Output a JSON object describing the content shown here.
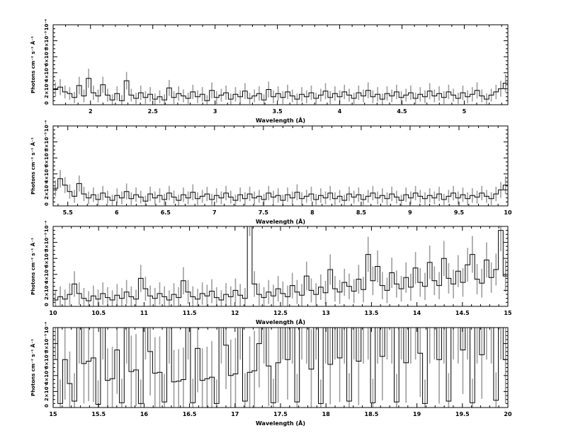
{
  "figure": {
    "background": "#ffffff",
    "axis_color": "#000000",
    "step_color": "#000000",
    "error_color": "#9e9e9e",
    "xlabel": "Wavelength (Å)",
    "ylabel": "Photons cm⁻² s⁻¹ Å⁻¹"
  },
  "chart_data": [
    {
      "type": "line",
      "title": "",
      "style": "step-histogram with vertical error bars",
      "xlabel": "Wavelength (Å)",
      "ylabel": "Photons cm⁻² s⁻¹ Å⁻¹",
      "xlim": [
        1.7,
        5.35
      ],
      "ylim": [
        0,
        0.0001
      ],
      "y_unit_scale": 1e-05,
      "x_ticks": {
        "values": [
          2,
          2.5,
          3,
          3.5,
          4,
          4.5,
          5
        ],
        "labels": [
          "2",
          "2.5",
          "3",
          "3.5",
          "4",
          "4.5",
          "5"
        ],
        "minor_step": 0.1
      },
      "y_ticks": {
        "values": [
          0,
          2,
          4,
          6,
          8,
          10
        ],
        "labels": [
          "0",
          "2×10⁻⁵",
          "4×10⁻⁵",
          "6×10⁻⁵",
          "8×10⁻⁵",
          "10⁻⁴"
        ],
        "minor_step": 0.5,
        "max": 10
      },
      "series": [
        {
          "name": "spectrum",
          "color": "#000000"
        },
        {
          "name": "error bars",
          "color": "#9e9e9e"
        }
      ],
      "bins": {
        "x0": 1.7,
        "dx": 0.0380208,
        "flux": [
          1.9,
          2.2,
          1.6,
          1.4,
          0.9,
          2.4,
          1.1,
          3.3,
          1.5,
          1.1,
          2.5,
          1.2,
          0.6,
          1.4,
          0.5,
          3.0,
          1.2,
          0.8,
          1.5,
          0.9,
          1.3,
          0.7,
          1.0,
          0.6,
          2.1,
          0.9,
          1.4,
          1.1,
          0.8,
          1.6,
          1.0,
          1.3,
          0.5,
          1.8,
          0.9,
          1.2,
          1.5,
          0.7,
          1.3,
          1.0,
          1.7,
          0.8,
          1.1,
          1.4,
          0.6,
          1.9,
          1.0,
          1.4,
          0.9,
          1.6,
          1.1,
          0.7,
          1.3,
          1.0,
          1.5,
          0.8,
          1.2,
          1.7,
          0.9,
          1.4,
          1.0,
          1.6,
          1.2,
          0.8,
          1.5,
          1.1,
          1.8,
          1.0,
          1.3,
          0.7,
          1.4,
          1.1,
          1.6,
          0.9,
          1.2,
          1.5,
          0.8,
          1.3,
          1.0,
          1.7,
          1.1,
          1.4,
          0.9,
          1.6,
          1.2,
          0.8,
          1.5,
          1.0,
          1.3,
          1.8,
          1.1,
          0.7,
          1.2,
          1.6,
          2.0,
          2.7
        ],
        "err": [
          0.9,
          1.0,
          0.8,
          0.8,
          0.7,
          1.1,
          0.8,
          1.2,
          0.9,
          0.8,
          1.0,
          0.8,
          0.7,
          0.9,
          0.7,
          1.1,
          0.8,
          0.7,
          0.9,
          0.8,
          0.9,
          0.7,
          0.8,
          0.7,
          1.0,
          0.8,
          0.9,
          0.8,
          0.7,
          0.9,
          0.8,
          0.9,
          0.7,
          1.0,
          0.8,
          0.8,
          0.9,
          0.7,
          0.9,
          0.8,
          1.0,
          0.7,
          0.8,
          0.9,
          0.7,
          1.0,
          0.8,
          0.9,
          0.8,
          0.9,
          0.8,
          0.7,
          0.9,
          0.8,
          0.9,
          0.7,
          0.8,
          1.0,
          0.8,
          0.9,
          0.8,
          0.9,
          0.8,
          0.7,
          0.9,
          0.8,
          1.0,
          0.8,
          0.9,
          0.7,
          0.9,
          0.8,
          0.9,
          0.8,
          0.8,
          0.9,
          0.7,
          0.9,
          0.8,
          1.0,
          0.8,
          0.9,
          0.8,
          0.9,
          0.8,
          0.7,
          0.9,
          0.8,
          0.9,
          1.0,
          0.8,
          0.7,
          0.8,
          0.9,
          1.0,
          1.1
        ]
      }
    },
    {
      "type": "line",
      "title": "",
      "style": "step-histogram with vertical error bars",
      "xlabel": "Wavelength (Å)",
      "ylabel": "Photons cm⁻² s⁻¹ Å⁻¹",
      "xlim": [
        5.35,
        10.0
      ],
      "ylim": [
        0,
        0.0001
      ],
      "y_unit_scale": 1e-05,
      "x_ticks": {
        "values": [
          5.5,
          6,
          6.5,
          7,
          7.5,
          8,
          8.5,
          9,
          9.5,
          10
        ],
        "labels": [
          "5.5",
          "6",
          "6.5",
          "7",
          "7.5",
          "8",
          "8.5",
          "9",
          "9.5",
          "10"
        ],
        "minor_step": 0.1
      },
      "y_ticks": {
        "values": [
          0,
          2,
          4,
          6,
          8,
          10
        ],
        "labels": [
          "0",
          "2×10⁻⁵",
          "4×10⁻⁵",
          "6×10⁻⁵",
          "8×10⁻⁵",
          "10⁻⁴"
        ],
        "minor_step": 0.5,
        "max": 10
      },
      "series": [
        {
          "name": "spectrum",
          "color": "#000000"
        },
        {
          "name": "error bars",
          "color": "#9e9e9e"
        }
      ],
      "bins": {
        "x0": 5.35,
        "dx": 0.0484375,
        "flux": [
          2.2,
          3.4,
          2.6,
          1.8,
          1.2,
          2.8,
          1.5,
          1.0,
          1.4,
          0.8,
          1.6,
          1.1,
          0.7,
          1.3,
          1.0,
          1.8,
          0.9,
          1.4,
          1.1,
          0.6,
          1.5,
          1.0,
          1.3,
          0.8,
          1.6,
          1.1,
          0.7,
          1.4,
          1.0,
          1.7,
          0.9,
          1.2,
          1.5,
          0.8,
          1.3,
          1.0,
          1.6,
          1.1,
          0.7,
          1.4,
          0.9,
          1.5,
          1.0,
          1.2,
          0.8,
          1.6,
          1.1,
          1.3,
          0.7,
          1.4,
          1.0,
          1.7,
          0.9,
          1.2,
          1.5,
          0.8,
          1.3,
          1.0,
          1.6,
          0.9,
          1.2,
          0.7,
          1.5,
          1.1,
          1.4,
          0.8,
          1.2,
          1.6,
          1.0,
          1.3,
          0.9,
          1.5,
          1.1,
          0.7,
          1.4,
          1.0,
          1.6,
          1.2,
          0.9,
          1.3,
          1.0,
          1.5,
          0.8,
          1.2,
          1.6,
          1.0,
          1.4,
          0.9,
          1.3,
          1.1,
          1.6,
          1.2,
          0.9,
          1.5,
          2.0,
          2.6
        ],
        "err": [
          1.0,
          1.1,
          1.0,
          0.9,
          0.8,
          1.0,
          0.9,
          0.8,
          0.9,
          0.7,
          0.9,
          0.8,
          0.7,
          0.9,
          0.8,
          1.0,
          0.8,
          0.9,
          0.8,
          0.7,
          0.9,
          0.8,
          0.9,
          0.7,
          0.9,
          0.8,
          0.7,
          0.9,
          0.8,
          1.0,
          0.8,
          0.8,
          0.9,
          0.7,
          0.9,
          0.8,
          0.9,
          0.8,
          0.7,
          0.9,
          0.8,
          0.9,
          0.8,
          0.8,
          0.7,
          0.9,
          0.8,
          0.9,
          0.7,
          0.9,
          0.8,
          1.0,
          0.8,
          0.8,
          0.9,
          0.7,
          0.9,
          0.8,
          0.9,
          0.8,
          0.8,
          0.7,
          0.9,
          0.8,
          0.9,
          0.7,
          0.8,
          0.9,
          0.8,
          0.9,
          0.8,
          0.9,
          0.8,
          0.7,
          0.9,
          0.8,
          0.9,
          0.8,
          0.8,
          0.9,
          0.8,
          0.9,
          0.7,
          0.8,
          0.9,
          0.8,
          0.9,
          0.8,
          0.9,
          0.8,
          0.9,
          0.8,
          0.8,
          0.9,
          1.0,
          1.1
        ]
      }
    },
    {
      "type": "line",
      "title": "",
      "style": "step-histogram with vertical error bars",
      "xlabel": "Wavelength (Å)",
      "ylabel": "Photons cm⁻² s⁻¹ Å⁻¹",
      "xlim": [
        10.0,
        15.0
      ],
      "ylim": [
        0,
        0.0001
      ],
      "y_unit_scale": 1e-05,
      "x_ticks": {
        "values": [
          10,
          10.5,
          11,
          11.5,
          12,
          12.5,
          13,
          13.5,
          14,
          14.5,
          15
        ],
        "labels": [
          "10",
          "10.5",
          "11",
          "11.5",
          "12",
          "12.5",
          "13",
          "13.5",
          "14",
          "14.5",
          "15"
        ],
        "minor_step": 0.1
      },
      "y_ticks": {
        "values": [
          0,
          2,
          4,
          6,
          8,
          10
        ],
        "labels": [
          "0",
          "2×10⁻⁵",
          "4×10⁻⁵",
          "6×10⁻⁵",
          "8×10⁻⁵",
          "10⁻⁴"
        ],
        "minor_step": 0.5,
        "max": 10
      },
      "series": [
        {
          "name": "spectrum",
          "color": "#000000"
        },
        {
          "name": "error bars",
          "color": "#9e9e9e"
        }
      ],
      "bins": {
        "x0": 10.0,
        "dx": 0.0520833,
        "flux": [
          0.8,
          1.2,
          0.9,
          1.5,
          2.8,
          1.6,
          1.0,
          0.7,
          1.3,
          0.9,
          1.6,
          1.1,
          0.8,
          1.4,
          1.0,
          1.8,
          1.2,
          0.9,
          3.5,
          2.2,
          1.3,
          1.0,
          1.6,
          1.2,
          0.8,
          1.5,
          1.1,
          3.2,
          1.8,
          1.2,
          0.9,
          1.6,
          1.3,
          1.9,
          1.1,
          0.8,
          1.5,
          1.2,
          2.0,
          1.4,
          1.0,
          11.0,
          2.8,
          1.5,
          1.1,
          1.8,
          1.3,
          2.2,
          1.6,
          1.2,
          2.6,
          1.8,
          1.4,
          3.8,
          2.0,
          1.5,
          2.4,
          1.7,
          4.6,
          2.2,
          1.8,
          3.0,
          2.5,
          1.9,
          3.4,
          2.1,
          6.5,
          3.2,
          5.0,
          2.6,
          2.0,
          4.2,
          2.8,
          2.2,
          3.6,
          2.4,
          4.8,
          3.0,
          2.5,
          5.5,
          3.2,
          2.6,
          6.0,
          3.5,
          2.8,
          4.4,
          3.0,
          5.2,
          6.5,
          3.4,
          2.9,
          5.8,
          3.6,
          4.6,
          9.5,
          3.8
        ],
        "err": [
          1.2,
          1.3,
          1.2,
          1.4,
          1.6,
          1.4,
          1.3,
          1.2,
          1.3,
          1.2,
          1.4,
          1.3,
          1.2,
          1.4,
          1.3,
          1.5,
          1.3,
          1.2,
          1.7,
          1.5,
          1.3,
          1.3,
          1.4,
          1.3,
          1.2,
          1.4,
          1.3,
          1.7,
          1.5,
          1.3,
          1.3,
          1.4,
          1.4,
          1.5,
          1.3,
          1.2,
          1.4,
          1.3,
          1.5,
          1.4,
          1.3,
          2.2,
          1.6,
          1.4,
          1.3,
          1.5,
          1.4,
          1.6,
          1.5,
          1.4,
          1.6,
          1.5,
          1.4,
          1.8,
          1.5,
          1.4,
          1.6,
          1.5,
          1.9,
          1.6,
          1.5,
          1.7,
          1.6,
          1.5,
          1.8,
          1.6,
          2.2,
          1.8,
          2.0,
          1.7,
          1.6,
          1.9,
          1.7,
          1.6,
          1.9,
          1.7,
          2.0,
          1.8,
          1.7,
          2.1,
          1.8,
          1.7,
          2.2,
          1.9,
          1.8,
          2.0,
          1.8,
          2.1,
          2.3,
          1.9,
          1.8,
          2.2,
          1.9,
          2.0,
          2.6,
          2.0
        ]
      }
    },
    {
      "type": "line",
      "title": "",
      "style": "step-histogram with vertical error bars",
      "xlabel": "Wavelength (Å)",
      "ylabel": "Photons cm⁻² s⁻¹ Å⁻¹",
      "xlim": [
        15.0,
        20.0
      ],
      "ylim": [
        0,
        0.0001
      ],
      "y_unit_scale": 1e-05,
      "x_ticks": {
        "values": [
          15,
          15.5,
          16,
          16.5,
          17,
          17.5,
          18,
          18.5,
          19,
          19.5,
          20
        ],
        "labels": [
          "15",
          "15.5",
          "16",
          "16.5",
          "17",
          "17.5",
          "18",
          "18.5",
          "19",
          "19.5",
          "20"
        ],
        "minor_step": 0.1
      },
      "y_ticks": {
        "values": [
          0,
          2,
          4,
          6,
          8,
          10
        ],
        "labels": [
          "0",
          "2×10⁻⁵",
          "4×10⁻⁵",
          "6×10⁻⁵",
          "8×10⁻⁵",
          "10⁻⁴"
        ],
        "minor_step": 0.5,
        "max": 10
      },
      "series": [
        {
          "name": "spectrum",
          "color": "#000000"
        },
        {
          "name": "error bars",
          "color": "#9e9e9e"
        }
      ],
      "bins": {
        "x0": 15.0,
        "dx": 0.0520833,
        "flux": [
          12.0,
          0.5,
          6.0,
          3.0,
          0.8,
          12.0,
          5.5,
          5.8,
          6.2,
          0.4,
          12.0,
          3.4,
          3.6,
          7.2,
          0.6,
          12.0,
          4.5,
          4.7,
          0.5,
          12.0,
          7.0,
          4.3,
          4.4,
          0.7,
          12.0,
          3.2,
          3.3,
          3.5,
          12.0,
          0.6,
          7.4,
          3.4,
          3.6,
          3.8,
          0.5,
          12.0,
          7.8,
          4.0,
          4.2,
          12.0,
          0.8,
          4.4,
          4.6,
          8.0,
          12.0,
          5.2,
          0.6,
          5.6,
          12.0,
          6.0,
          12.0,
          0.7,
          12.0,
          12.0,
          4.8,
          12.0,
          0.5,
          12.0,
          5.4,
          12.0,
          6.2,
          12.0,
          0.8,
          12.0,
          5.8,
          12.0,
          12.0,
          0.6,
          12.0,
          6.4,
          12.0,
          12.0,
          0.7,
          12.0,
          5.6,
          12.0,
          12.0,
          6.8,
          0.5,
          12.0,
          12.0,
          6.0,
          12.0,
          0.8,
          12.0,
          12.0,
          7.2,
          12.0,
          0.6,
          12.0,
          6.6,
          12.0,
          12.0,
          0.9,
          12.0,
          6.0
        ],
        "err": [
          6.0,
          3.0,
          5.0,
          4.0,
          3.5,
          6.5,
          5.0,
          5.0,
          5.5,
          3.0,
          6.0,
          4.0,
          4.0,
          5.5,
          3.0,
          6.5,
          4.5,
          4.5,
          3.0,
          6.0,
          5.5,
          4.5,
          4.5,
          3.5,
          6.5,
          4.0,
          4.0,
          4.0,
          6.0,
          3.0,
          5.5,
          4.0,
          4.0,
          4.5,
          3.0,
          6.5,
          5.5,
          4.5,
          4.5,
          6.0,
          3.5,
          4.5,
          5.0,
          5.5,
          6.5,
          5.0,
          3.0,
          5.0,
          6.0,
          5.0,
          6.5,
          3.5,
          6.0,
          6.5,
          5.0,
          6.0,
          3.0,
          6.5,
          5.0,
          6.0,
          5.5,
          6.5,
          3.5,
          6.0,
          5.5,
          6.5,
          6.0,
          3.0,
          6.5,
          5.5,
          6.0,
          6.5,
          3.5,
          6.0,
          5.0,
          6.5,
          6.0,
          5.5,
          3.0,
          6.5,
          6.0,
          5.5,
          6.5,
          3.5,
          6.0,
          6.5,
          5.5,
          6.0,
          3.0,
          6.5,
          5.5,
          6.0,
          6.5,
          3.5,
          6.0,
          5.5
        ]
      }
    }
  ]
}
